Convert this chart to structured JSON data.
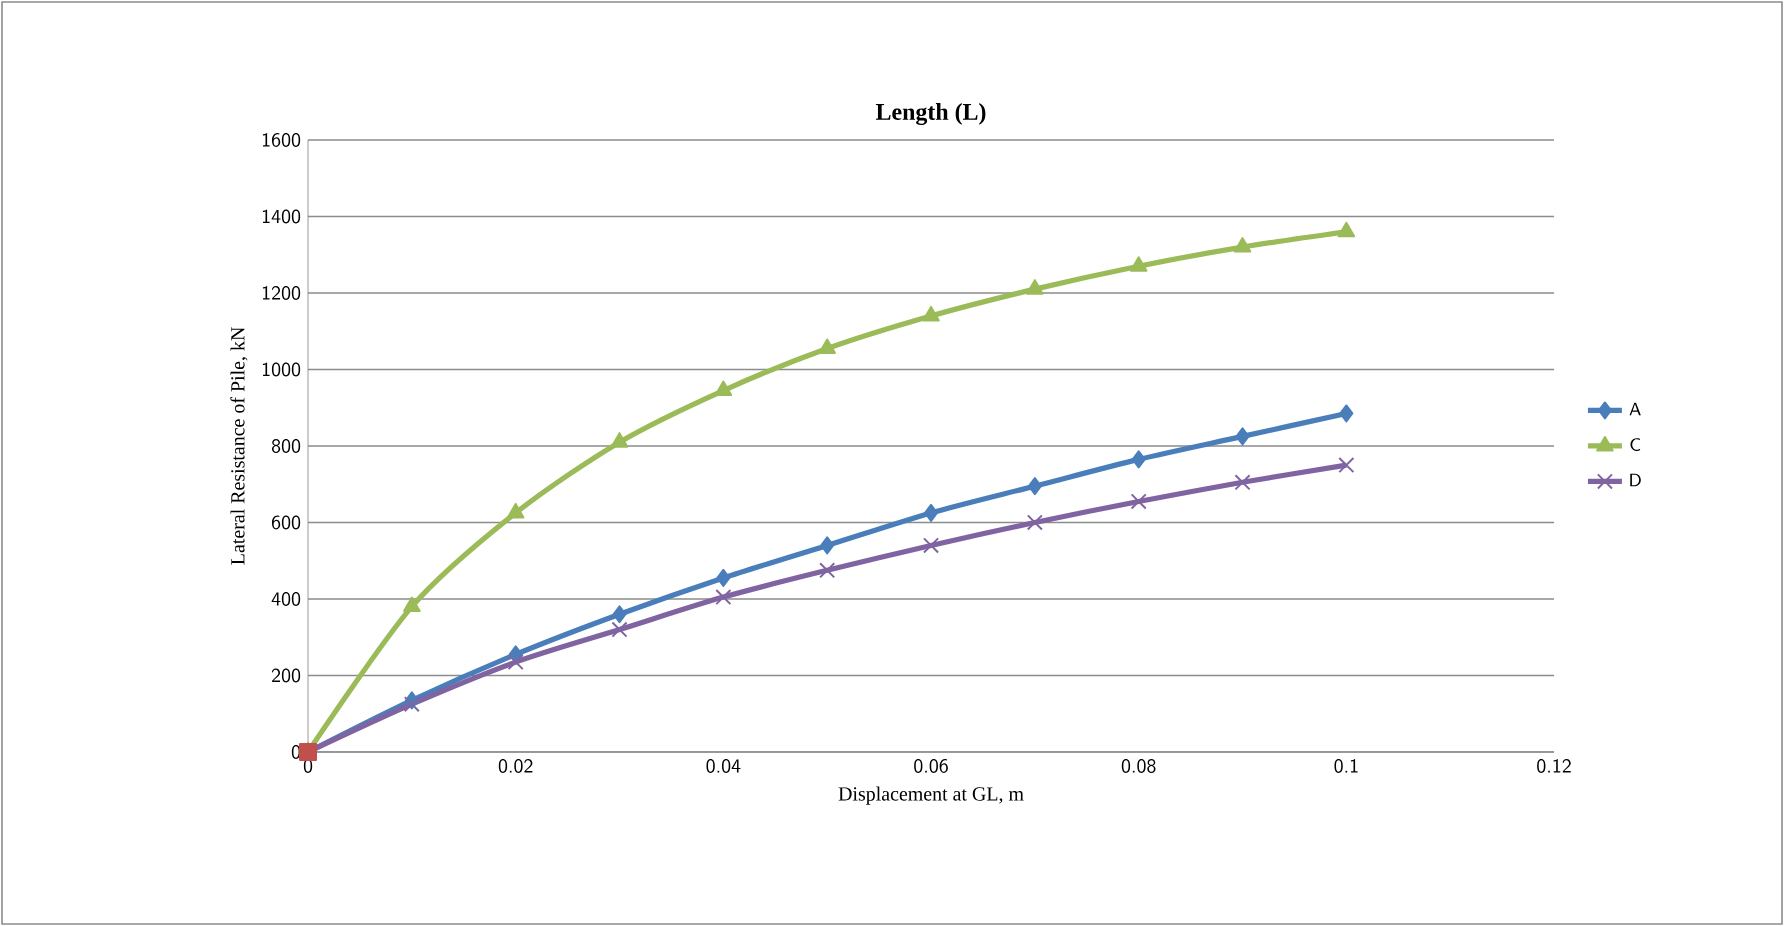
{
  "chart_data": {
    "type": "line",
    "title": "Length (L)",
    "xlabel": "Displacement at GL, m",
    "ylabel": "Lateral Resistance of Pile, kN",
    "x": [
      0,
      0.01,
      0.02,
      0.03,
      0.04,
      0.05,
      0.06,
      0.07,
      0.08,
      0.09,
      0.1
    ],
    "series": [
      {
        "name": "A",
        "color": "#4a7ebb",
        "marker": "diamond",
        "values": [
          0,
          135,
          255,
          360,
          455,
          540,
          625,
          695,
          765,
          825,
          885
        ]
      },
      {
        "name": "C",
        "color": "#9bbb59",
        "marker": "triangle",
        "values": [
          0,
          380,
          625,
          810,
          945,
          1055,
          1140,
          1210,
          1270,
          1320,
          1360
        ]
      },
      {
        "name": "D",
        "color": "#8064a2",
        "marker": "cross",
        "values": [
          0,
          125,
          235,
          320,
          405,
          475,
          540,
          600,
          655,
          705,
          750
        ]
      },
      {
        "color": "#c0504d",
        "marker": "square",
        "x": [
          0
        ],
        "values": [
          0
        ]
      }
    ],
    "xlim": [
      0,
      0.12
    ],
    "xticks": [
      0,
      0.02,
      0.04,
      0.06,
      0.08,
      0.1,
      0.12
    ],
    "ylim": [
      0,
      1600
    ],
    "yticks": [
      0,
      200,
      400,
      600,
      800,
      1000,
      1200,
      1400,
      1600
    ],
    "grid": "y",
    "legend": "right"
  }
}
